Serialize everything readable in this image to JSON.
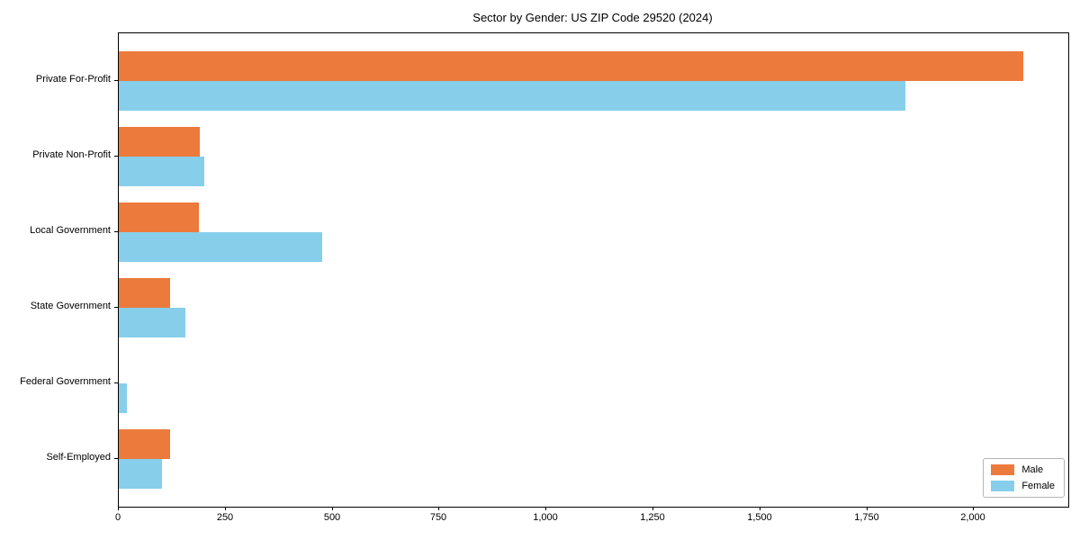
{
  "chart_data": {
    "type": "bar",
    "orientation": "horizontal",
    "title": "Sector by Gender: US ZIP Code 29520 (2024)",
    "xlabel": "",
    "ylabel": "",
    "categories": [
      "Private For-Profit",
      "Private Non-Profit",
      "Local Government",
      "State Government",
      "Federal Government",
      "Self-Employed"
    ],
    "series": [
      {
        "name": "Male",
        "color": "#ec7a3d",
        "values": [
          2115,
          190,
          188,
          120,
          0,
          120
        ]
      },
      {
        "name": "Female",
        "color": "#87ceeb",
        "values": [
          1840,
          200,
          475,
          155,
          18,
          100
        ]
      }
    ],
    "xlim": [
      0,
      2220
    ],
    "xticks": [
      0,
      250,
      500,
      750,
      1000,
      1250,
      1500,
      1750,
      2000
    ],
    "xtick_labels": [
      "0",
      "250",
      "500",
      "750",
      "1,000",
      "1,250",
      "1,500",
      "1,750",
      "2,000"
    ],
    "grid": false,
    "legend_position": "lower right",
    "background_color": "#ffffff",
    "spine_color": "#000000"
  }
}
